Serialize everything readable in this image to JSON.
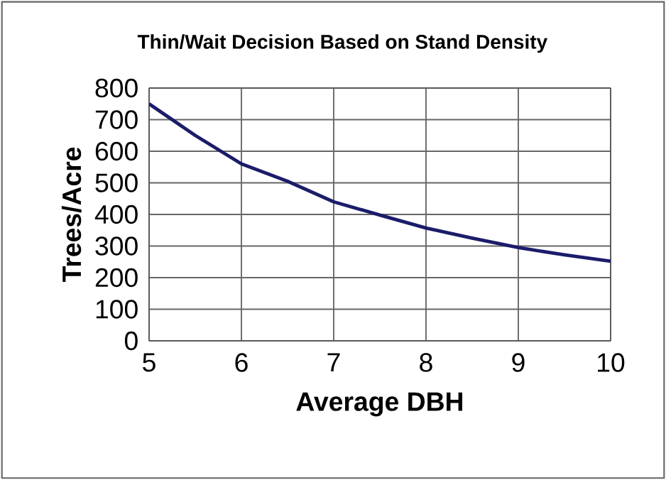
{
  "chart_data": {
    "type": "line",
    "title": "Thin/Wait Decision Based on Stand Density",
    "xlabel": "Average DBH",
    "ylabel": "Trees/Acre",
    "x": [
      5,
      5.5,
      6,
      6.5,
      7,
      7.5,
      8,
      8.5,
      9,
      9.5,
      10
    ],
    "series": [
      {
        "color": "#1c1c6b",
        "values": [
          750,
          650,
          560,
          505,
          440,
          398,
          357,
          325,
          295,
          272,
          252
        ]
      }
    ],
    "xlim": [
      5,
      10
    ],
    "xticks": [
      5,
      6,
      7,
      8,
      9,
      10
    ],
    "ylim": [
      0,
      800
    ],
    "yticks": [
      0,
      100,
      200,
      300,
      400,
      500,
      600,
      700,
      800
    ],
    "grid": true,
    "marker": "none",
    "line_style": "solid"
  }
}
